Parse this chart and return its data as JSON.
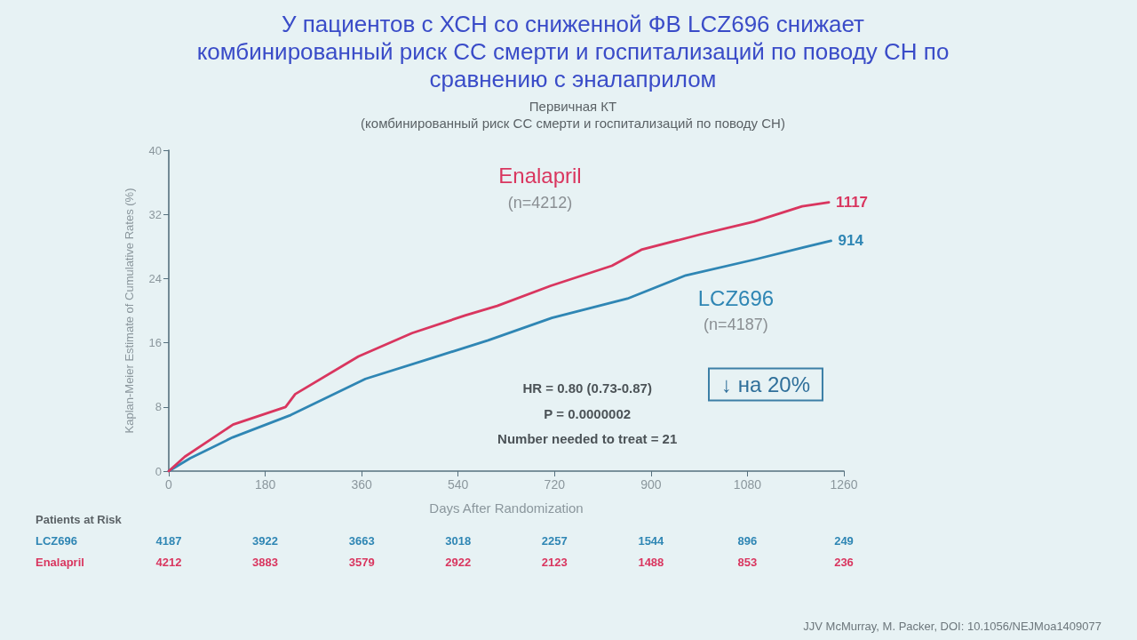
{
  "chart_data": {
    "type": "line",
    "title": "У пациентов с ХСН со сниженной ФВ LCZ696 снижает комбинированный риск СС смерти и госпитализаций по поводу СН по сравнению с эналаприлом",
    "subtitle": "Первичная КТ\n(комбинированный риск СС смерти и госпитализаций по поводу СН)",
    "xlabel": "Days After Randomization",
    "ylabel": "Kaplan-Meier Estimate of Cumulative Rates (%)",
    "xlim": [
      0,
      1260
    ],
    "xticks": [
      0,
      180,
      360,
      540,
      720,
      900,
      1080,
      1260
    ],
    "ylim": [
      0,
      40
    ],
    "yticks": [
      0,
      8,
      16,
      24,
      32,
      40
    ],
    "grid": false,
    "marker": "none",
    "line_style": "solid",
    "series": [
      {
        "name": "LCZ696",
        "color": "#2f86b4",
        "x": [
          0,
          40,
          119,
          228,
          367,
          496,
          596,
          715,
          856,
          965,
          1095,
          1186,
          1236
        ],
        "values": [
          0,
          1.6,
          4.2,
          7.0,
          11.5,
          14.2,
          16.3,
          19.1,
          21.5,
          24.4,
          26.4,
          27.9,
          28.7
        ]
      },
      {
        "name": "Enalapril",
        "color": "#d9365f",
        "x": [
          0,
          30,
          120,
          218,
          236,
          354,
          454,
          553,
          613,
          713,
          827,
          882,
          992,
          1092,
          1182,
          1232
        ],
        "values": [
          0,
          1.8,
          5.8,
          8.0,
          9.6,
          14.3,
          17.2,
          19.4,
          20.6,
          23.1,
          25.6,
          27.6,
          29.5,
          31.1,
          33.0,
          33.5
        ]
      }
    ],
    "annotations": [
      "(n=4187)",
      {
        "text": "914",
        "x": 1236,
        "y": 28.7
      },
      "(n=4212)",
      {
        "text": "1117",
        "x": 1232,
        "y": 33.5
      },
      "HR = 0.80 (0.73-0.87)",
      "P = 0.0000002",
      "Number needed to treat = 21",
      "↓ на 20%",
      "Patients at Risk",
      "LCZ696",
      "Enalapril",
      "4187",
      "3922",
      "3663",
      "3018",
      "2257",
      "1544",
      "896",
      "249",
      "4212",
      "3883",
      "3579",
      "2922",
      "2123",
      "1488",
      "853",
      "236",
      "JJV McMurray, M. Packer, DOI: 10.1056/NEJMoa1409077"
    ]
  }
}
